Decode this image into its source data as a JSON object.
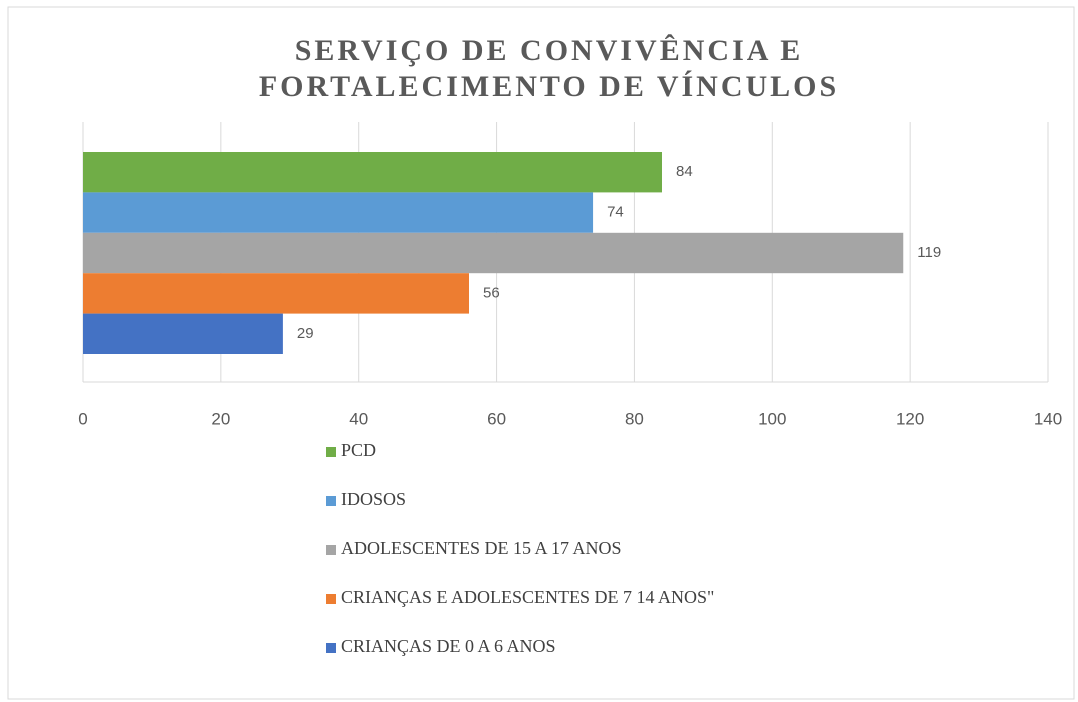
{
  "chart_data": {
    "type": "bar",
    "orientation": "horizontal",
    "title": "SERVIÇO DE CONVIVÊNCIA E FORTALECIMENTO DE VÍNCULOS",
    "series": [
      {
        "name": "PCD",
        "color": "#70ad47",
        "values": [
          84
        ]
      },
      {
        "name": "IDOSOS",
        "color": "#5b9bd5",
        "values": [
          74
        ]
      },
      {
        "name": "ADOLESCENTES DE 15 A 17 ANOS",
        "color": "#a5a5a5",
        "values": [
          119
        ]
      },
      {
        "name": "CRIANÇAS E ADOLESCENTES DE 7 14 ANOS\"",
        "color": "#ed7d31",
        "values": [
          56
        ]
      },
      {
        "name": "CRIANÇAS DE 0 A 6 ANOS",
        "color": "#4472c4",
        "values": [
          29
        ]
      }
    ],
    "xlim": [
      0,
      140
    ],
    "xticks": [
      0,
      20,
      40,
      60,
      80,
      100,
      120,
      140
    ],
    "grid": true,
    "legend": "bottom"
  }
}
